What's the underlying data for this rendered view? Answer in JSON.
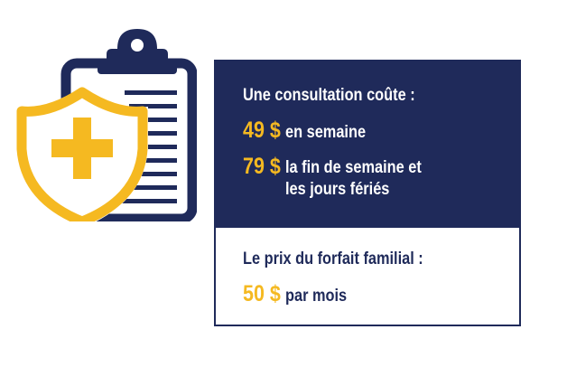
{
  "consultation": {
    "heading": "Une consultation coûte :",
    "weekday_price": "49 $",
    "weekday_label": "en semaine",
    "weekend_price": "79 $",
    "weekend_label_line1": "la fin de semaine et",
    "weekend_label_line2": "les jours fériés"
  },
  "family_plan": {
    "heading": "Le prix du forfait familial :",
    "price": "50 $",
    "label": "par mois"
  },
  "colors": {
    "navy": "#1f2a5a",
    "gold": "#f5b921",
    "white": "#ffffff"
  },
  "icons": {
    "clipboard": "clipboard-icon",
    "shield": "shield-medical-cross-icon"
  }
}
